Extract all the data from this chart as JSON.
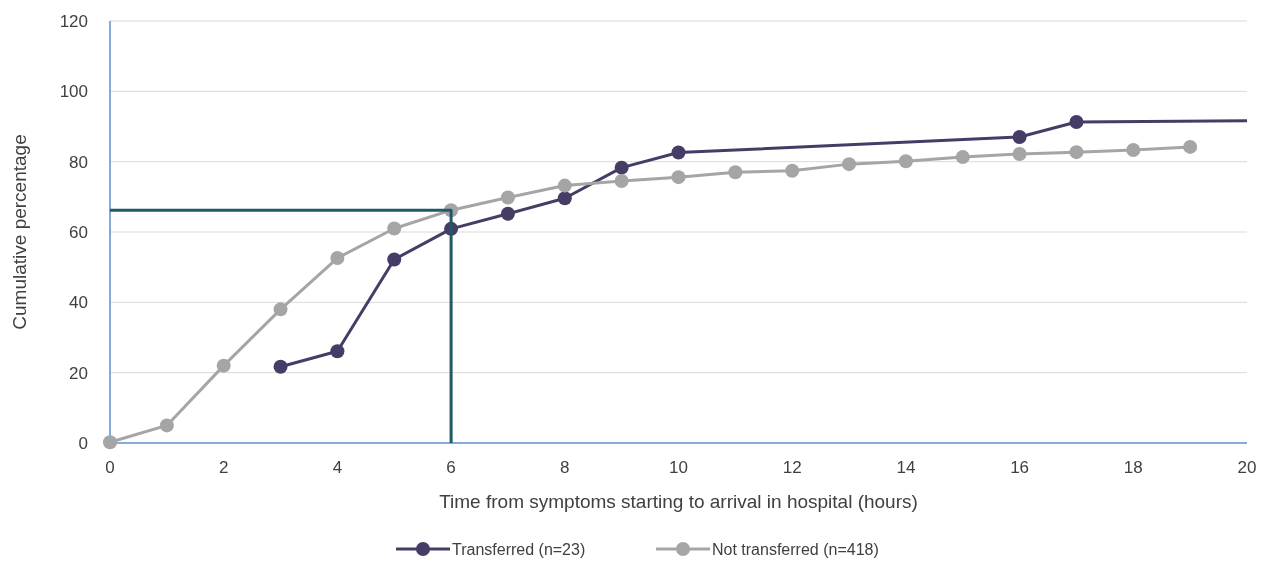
{
  "chart_data": {
    "type": "line",
    "xlabel": "Time from symptoms starting to arrival in hospital (hours)",
    "ylabel": "Cumulative percentage",
    "xlim": [
      0,
      20
    ],
    "xticks": [
      0,
      2,
      4,
      6,
      8,
      10,
      12,
      14,
      16,
      18,
      20
    ],
    "ylim": [
      0,
      120
    ],
    "yticks": [
      0,
      20,
      40,
      60,
      80,
      100,
      120
    ],
    "grid": "y",
    "legend": "bottom",
    "marker": "circle",
    "line_style": "solid",
    "series": [
      {
        "name": "Transferred (n=23)",
        "color": "#463c66",
        "x": [
          3,
          4,
          5,
          6,
          7,
          8,
          9,
          10,
          16,
          17
        ],
        "values": [
          21.7,
          26.1,
          52.2,
          60.9,
          65.2,
          69.6,
          78.3,
          82.6,
          87.0,
          91.3
        ]
      },
      {
        "name": "Not transferred (n=418)",
        "color": "#a5a5a5",
        "x": [
          0,
          1,
          2,
          3,
          4,
          5,
          6,
          7,
          8,
          9,
          10,
          11,
          12,
          13,
          14,
          15,
          16,
          17,
          18,
          19
        ],
        "values": [
          0.2,
          5,
          22,
          38,
          52.6,
          61,
          66.2,
          69.8,
          73.2,
          74.5,
          75.6,
          77,
          77.4,
          79.3,
          80.1,
          81.3,
          82.2,
          82.7,
          83.3,
          84.2
        ]
      },
      {
        "color": "#463c66",
        "marker": "none",
        "x": [
          17,
          20
        ],
        "values": [
          91.3,
          91.6
        ]
      },
      {
        "color": "#1f5a66",
        "marker": "none",
        "x": [
          0,
          6,
          6
        ],
        "values": [
          66.2,
          66.2,
          0
        ]
      }
    ]
  }
}
